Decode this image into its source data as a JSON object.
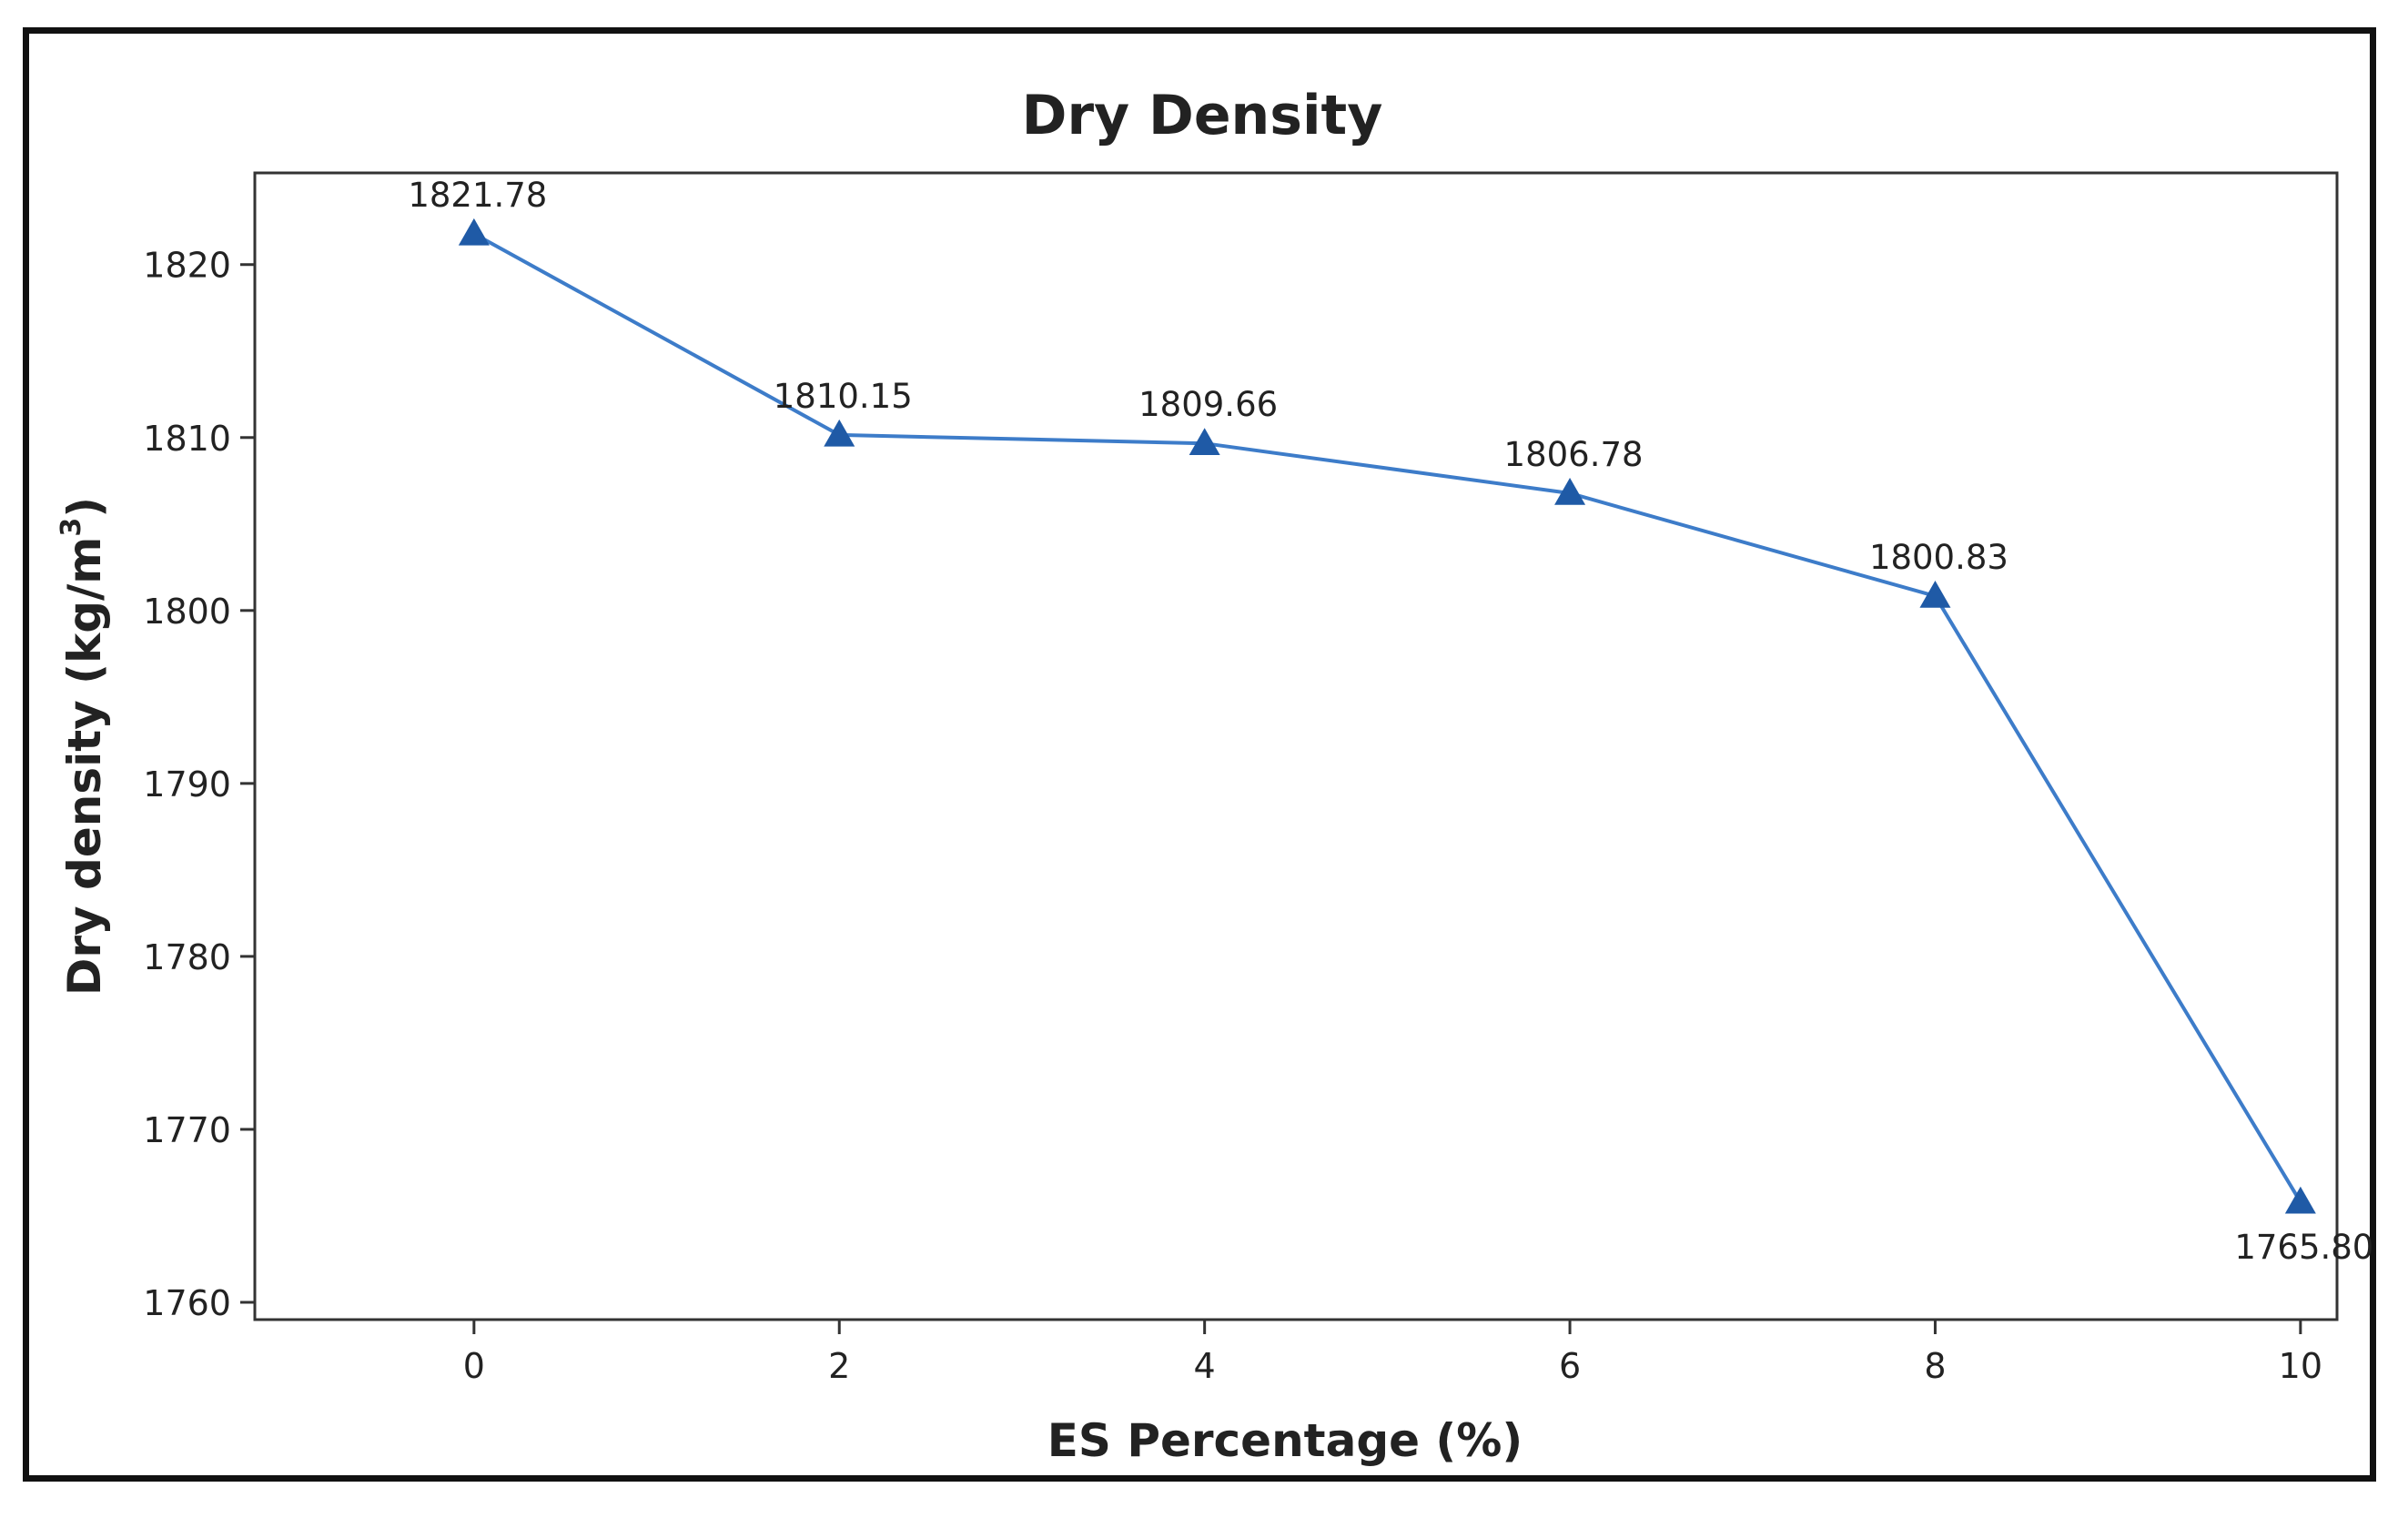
{
  "chart_data": {
    "type": "line",
    "title": "Dry Density",
    "xlabel": "ES Percentage (%)",
    "ylabel": "Dry density (kg/m",
    "ylabel_superscript": "3",
    "ylabel_suffix": ")",
    "x": [
      0,
      2,
      4,
      6,
      8,
      10
    ],
    "series": [
      {
        "name": "Dry density",
        "values": [
          1821.78,
          1810.15,
          1809.66,
          1806.78,
          1800.83,
          1765.8
        ],
        "labels": [
          "1821.78",
          "1810.15",
          "1809.66",
          "1806.78",
          "1800.83",
          "1765.80"
        ],
        "color": "#3d7cc9",
        "marker_color": "#1f5aa6",
        "marker": "triangle"
      }
    ],
    "xticks": [
      0,
      2,
      4,
      6,
      8,
      10
    ],
    "xtick_labels": [
      "0",
      "2",
      "4",
      "6",
      "8",
      "10"
    ],
    "yticks": [
      1760,
      1770,
      1780,
      1790,
      1800,
      1810,
      1820
    ],
    "ytick_labels": [
      "1760",
      "1770",
      "1780",
      "1790",
      "1800",
      "1810",
      "1820"
    ],
    "xlim": [
      -1.2,
      10.2
    ],
    "ylim": [
      1759,
      1825.3
    ],
    "grid": false,
    "legend": "none"
  }
}
